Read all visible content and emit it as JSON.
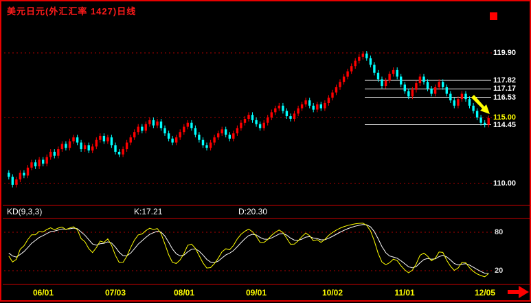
{
  "window": {
    "background": "#000000",
    "border_color": "#e60000"
  },
  "icons": {
    "marker_square": {
      "name": "red-square",
      "color": "#ff0000"
    },
    "price_arrow": {
      "name": "down-right-arrow",
      "color": "#ffff00"
    },
    "scroll_right": {
      "name": "right-arrow",
      "color": "#ff0000"
    }
  },
  "chart_data": [
    {
      "type": "candlestick",
      "title": "美元日元(外汇汇率 1427)日线",
      "up_color": "#ff0000",
      "down_color": "#00ffff",
      "grid_color": "#b00000",
      "x_tick_labels": [
        {
          "text": "06/01",
          "day": 9
        },
        {
          "text": "07/03",
          "day": 28
        },
        {
          "text": "08/01",
          "day": 46
        },
        {
          "text": "09/01",
          "day": 65
        },
        {
          "text": "10/02",
          "day": 85
        },
        {
          "text": "11/01",
          "day": 104
        },
        {
          "text": "12/05",
          "day": 125
        }
      ],
      "tick_color": "#ffff00",
      "y_tick_labels": [
        {
          "text": "119.90",
          "price": 119.9,
          "color": "#ffffff"
        },
        {
          "text": "117.82",
          "price": 117.82,
          "color": "#ffffff"
        },
        {
          "text": "117.17",
          "price": 117.17,
          "color": "#ffffff"
        },
        {
          "text": "116.53",
          "price": 116.53,
          "color": "#ffffff"
        },
        {
          "text": "115.00",
          "price": 115.0,
          "color": "#ffff00"
        },
        {
          "text": "114.45",
          "price": 114.45,
          "color": "#ffffff"
        },
        {
          "text": "110.00",
          "price": 110.0,
          "color": "#ffffff"
        }
      ],
      "grid_levels": [
        119.9,
        115.0,
        110.0
      ],
      "white_lines": {
        "levels": [
          117.82,
          117.17,
          116.53,
          114.45
        ],
        "start_day": 94
      },
      "open_rule": "previous_close",
      "first_open": 110.8,
      "wick": 0.2,
      "closes": [
        110.5,
        109.9,
        110.3,
        110.8,
        110.6,
        111.2,
        111.6,
        111.3,
        111.8,
        111.5,
        112.0,
        112.4,
        112.1,
        112.6,
        113.0,
        112.7,
        113.2,
        113.5,
        113.1,
        112.6,
        112.9,
        112.5,
        112.8,
        113.3,
        113.6,
        113.2,
        113.5,
        112.9,
        112.4,
        112.2,
        112.6,
        113.1,
        113.5,
        113.9,
        114.3,
        114.0,
        114.5,
        114.8,
        114.4,
        114.7,
        114.2,
        113.8,
        113.4,
        113.1,
        113.5,
        113.9,
        114.3,
        114.6,
        114.2,
        113.7,
        113.3,
        112.9,
        112.7,
        113.1,
        113.5,
        113.8,
        114.1,
        113.7,
        113.4,
        113.8,
        114.2,
        114.6,
        114.9,
        115.2,
        114.8,
        114.5,
        114.2,
        114.6,
        115.0,
        115.4,
        115.7,
        115.9,
        115.5,
        115.1,
        114.9,
        115.3,
        115.7,
        116.0,
        116.3,
        115.9,
        115.6,
        116.0,
        115.7,
        116.1,
        116.5,
        116.9,
        117.3,
        117.7,
        118.1,
        118.5,
        118.9,
        119.3,
        119.6,
        119.85,
        119.5,
        119.0,
        118.4,
        117.9,
        117.4,
        117.8,
        118.3,
        118.6,
        118.1,
        117.5,
        117.0,
        116.6,
        117.1,
        117.6,
        118.1,
        117.7,
        117.2,
        116.8,
        117.3,
        117.7,
        117.3,
        116.8,
        116.3,
        115.9,
        116.4,
        116.8,
        116.4,
        115.9,
        115.5,
        115.0,
        114.6,
        114.45,
        114.95
      ]
    },
    {
      "type": "line",
      "title": "KD(9,3,3)",
      "derived": "stochastic_9_3_3_from_candles",
      "series": [
        {
          "name": "K",
          "color": "#ffff00",
          "last_label": "K:17.21",
          "last_value": 17.21
        },
        {
          "name": "D",
          "color": "#ffffff",
          "last_label": "D:20.30",
          "last_value": 20.3
        }
      ],
      "gridlines": [
        {
          "value": 80,
          "label": "80"
        },
        {
          "value": 20,
          "label": "20"
        }
      ],
      "ylim": [
        0,
        100
      ]
    }
  ]
}
